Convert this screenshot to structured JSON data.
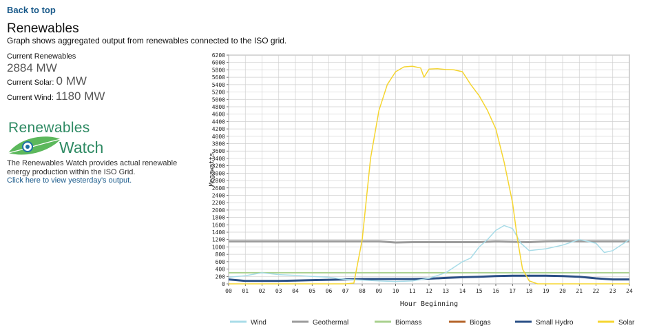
{
  "nav": {
    "back_label": "Back to top"
  },
  "header": {
    "title": "Renewables",
    "subtitle": "Graph shows aggregated output from renewables connected to the ISO grid."
  },
  "stats": {
    "current_renewables_label": "Current Renewables",
    "current_renewables_value": "2884 MW",
    "current_solar_label": "Current Solar:",
    "current_solar_value": "0 MW",
    "current_wind_label": "Current Wind:",
    "current_wind_value": "1180 MW"
  },
  "logo": {
    "line1": "Renewables",
    "line2": "Watch"
  },
  "info": {
    "description": "The Renewables Watch provides actual renewable energy production within the ISO Grid.",
    "link_label": "Click here to view yesterday's output."
  },
  "colors": {
    "wind": "#a8dce8",
    "geothermal": "#9b9b9b",
    "biomass": "#a9d18e",
    "biogas": "#b5642a",
    "small_hydro": "#2a4f86",
    "solar": "#f5d530",
    "link": "#1a5a8a",
    "logo_green": "#2e8a63"
  },
  "chart_data": {
    "type": "line",
    "title": "",
    "xlabel": "Hour Beginning",
    "ylabel": "Megawatts",
    "ylim": [
      0,
      6200
    ],
    "xlim": [
      0,
      24
    ],
    "x_ticks": [
      "00",
      "01",
      "02",
      "03",
      "04",
      "05",
      "06",
      "07",
      "08",
      "09",
      "10",
      "11",
      "12",
      "13",
      "14",
      "15",
      "16",
      "17",
      "18",
      "19",
      "20",
      "21",
      "22",
      "23",
      "24"
    ],
    "y_ticks": [
      0,
      200,
      400,
      600,
      800,
      1000,
      1200,
      1400,
      1600,
      1800,
      2000,
      2200,
      2400,
      2600,
      2800,
      3000,
      3200,
      3400,
      3600,
      3800,
      4000,
      4200,
      4400,
      4600,
      4800,
      5000,
      5200,
      5400,
      5600,
      5800,
      6000,
      6200
    ],
    "grid": true,
    "legend_position": "bottom",
    "series": [
      {
        "name": "Wind",
        "x": [
          0,
          1,
          2,
          3,
          4,
          5,
          6,
          7,
          8,
          9,
          10,
          11,
          12,
          13,
          14,
          14.5,
          15,
          15.5,
          16,
          16.5,
          17,
          17.5,
          18,
          19,
          20,
          21,
          22,
          22.5,
          23,
          24
        ],
        "values": [
          180,
          220,
          300,
          250,
          230,
          200,
          180,
          120,
          100,
          80,
          60,
          80,
          150,
          300,
          600,
          700,
          1000,
          1200,
          1450,
          1580,
          1500,
          1100,
          900,
          950,
          1050,
          1200,
          1100,
          850,
          900,
          1200
        ]
      },
      {
        "name": "Geothermal",
        "x": [
          0,
          2,
          4,
          6,
          8,
          9,
          10,
          11,
          12,
          13,
          14,
          15,
          16,
          17,
          18,
          19,
          20,
          21,
          22,
          23,
          24
        ],
        "values": [
          1150,
          1150,
          1150,
          1150,
          1150,
          1150,
          1120,
          1130,
          1130,
          1130,
          1130,
          1130,
          1150,
          1140,
          1130,
          1150,
          1160,
          1150,
          1150,
          1150,
          1150
        ]
      },
      {
        "name": "Biomass",
        "x": [
          0,
          4,
          8,
          12,
          16,
          20,
          24
        ],
        "values": [
          300,
          300,
          300,
          300,
          300,
          300,
          300
        ]
      },
      {
        "name": "Biogas",
        "x": [
          0,
          24
        ],
        "values": [
          200,
          200
        ]
      },
      {
        "name": "Small Hydro",
        "x": [
          0,
          1,
          2,
          3,
          4,
          5,
          6,
          7,
          8,
          9,
          10,
          11,
          12,
          13,
          14,
          15,
          16,
          17,
          18,
          19,
          20,
          21,
          22,
          23,
          24
        ],
        "values": [
          120,
          80,
          80,
          80,
          90,
          100,
          110,
          120,
          130,
          130,
          130,
          130,
          140,
          160,
          180,
          190,
          210,
          220,
          220,
          220,
          210,
          190,
          150,
          120,
          120
        ]
      },
      {
        "name": "Solar",
        "x": [
          0,
          7,
          7.5,
          8,
          8.5,
          9,
          9.5,
          10,
          10.5,
          11,
          11.5,
          11.7,
          12,
          12.5,
          13,
          13.5,
          14,
          14.5,
          15,
          15.5,
          16,
          16.5,
          17,
          17.3,
          17.6,
          18,
          18.5,
          19,
          20,
          24
        ],
        "values": [
          0,
          0,
          20,
          1200,
          3400,
          4700,
          5400,
          5750,
          5880,
          5900,
          5850,
          5600,
          5820,
          5830,
          5810,
          5800,
          5750,
          5400,
          5100,
          4700,
          4200,
          3300,
          2200,
          1200,
          400,
          80,
          0,
          0,
          0,
          0
        ]
      }
    ]
  }
}
